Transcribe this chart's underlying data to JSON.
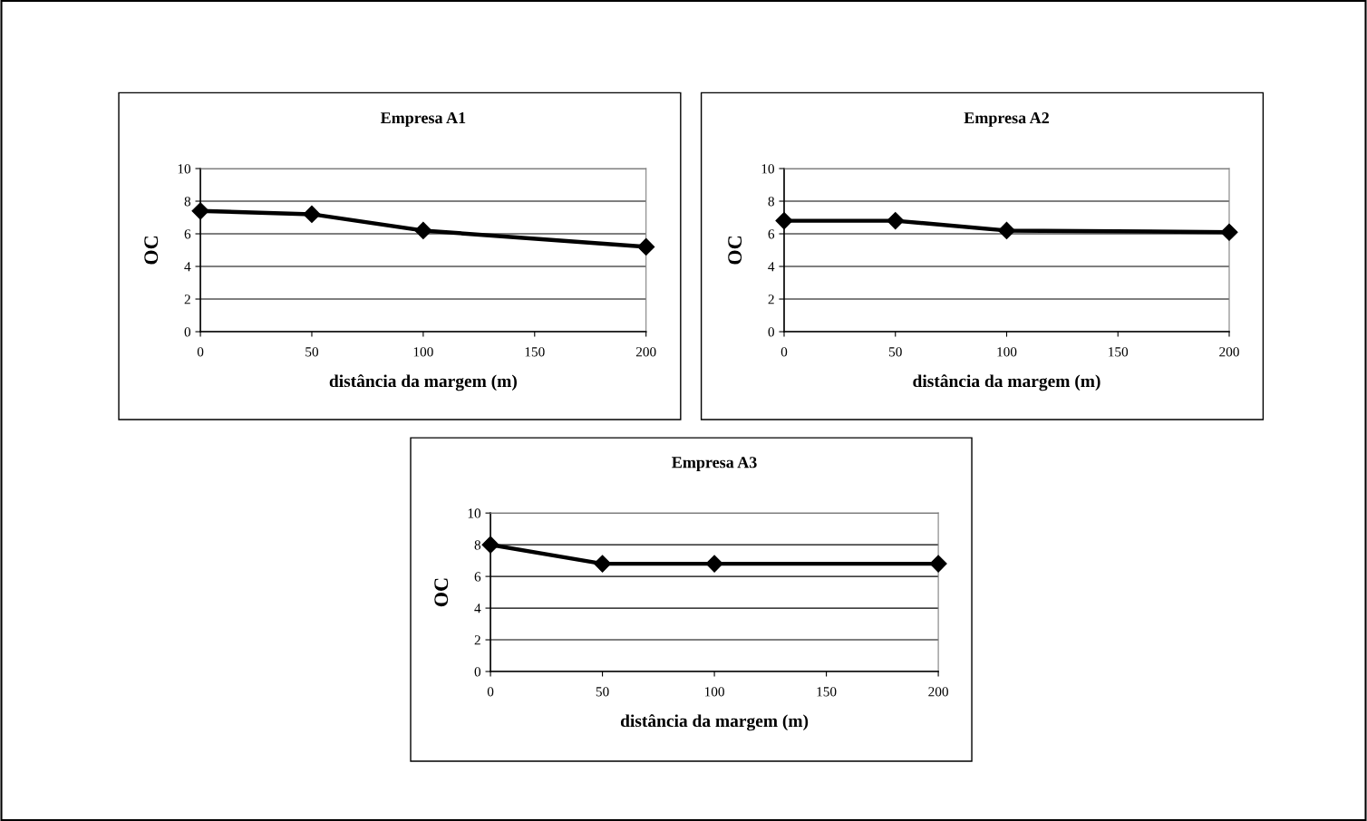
{
  "chart_data": [
    {
      "type": "line",
      "title": "Empresa A1",
      "xlabel": "distância da margem (m)",
      "ylabel": "OC",
      "x": [
        0,
        50,
        100,
        200
      ],
      "series": [
        {
          "color": "#000000",
          "values": [
            7.4,
            7.2,
            6.2,
            5.2
          ]
        }
      ],
      "xlim": [
        0,
        200
      ],
      "xticks": [
        0,
        50,
        100,
        150,
        200
      ],
      "ylim": [
        0,
        10
      ],
      "yticks": [
        0,
        2,
        4,
        6,
        8,
        10
      ],
      "grid": "y",
      "marker": "diamond",
      "line_style": "solid"
    },
    {
      "type": "line",
      "title": "Empresa A2",
      "xlabel": "distância da margem (m)",
      "ylabel": "OC",
      "x": [
        0,
        50,
        100,
        200
      ],
      "series": [
        {
          "color": "#000000",
          "values": [
            6.8,
            6.8,
            6.2,
            6.1
          ]
        }
      ],
      "xlim": [
        0,
        200
      ],
      "xticks": [
        0,
        50,
        100,
        150,
        200
      ],
      "ylim": [
        0,
        10
      ],
      "yticks": [
        0,
        2,
        4,
        6,
        8,
        10
      ],
      "grid": "y",
      "marker": "diamond",
      "line_style": "solid"
    },
    {
      "type": "line",
      "title": "Empresa A3",
      "xlabel": "distância da margem (m)",
      "ylabel": "OC",
      "x": [
        0,
        50,
        100,
        200
      ],
      "series": [
        {
          "color": "#000000",
          "values": [
            8.0,
            6.8,
            6.8,
            6.8
          ]
        }
      ],
      "xlim": [
        0,
        200
      ],
      "xticks": [
        0,
        50,
        100,
        150,
        200
      ],
      "ylim": [
        0,
        10
      ],
      "yticks": [
        0,
        2,
        4,
        6,
        8,
        10
      ],
      "grid": "y",
      "marker": "diamond",
      "line_style": "solid"
    }
  ]
}
